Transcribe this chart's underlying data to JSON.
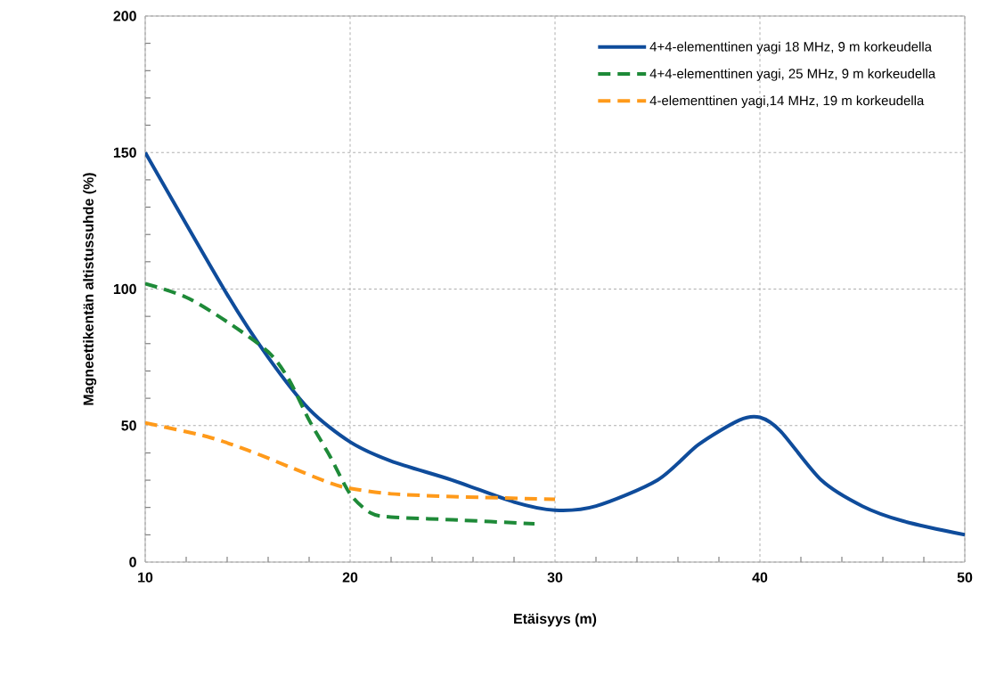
{
  "chart_data": {
    "type": "line",
    "xlabel": "Etäisyys (m)",
    "ylabel": "Magneettikentän altistussuhde (%)",
    "xlim": [
      10,
      50
    ],
    "xticks": [
      10,
      20,
      30,
      40,
      50
    ],
    "ylim": [
      0,
      200
    ],
    "yticks": [
      0,
      50,
      100,
      150,
      200
    ],
    "grid": true,
    "legend": "top right",
    "marker": "none",
    "series": [
      {
        "name": "4+4-elementtinen yagi 18 MHz, 9 m korkeudella",
        "color": "#0f4c9b",
        "line_style": "solid",
        "x": [
          10,
          14,
          16,
          18,
          20,
          22,
          25,
          28,
          30,
          32,
          35,
          37,
          39,
          40,
          41,
          43,
          45,
          47,
          50
        ],
        "values": [
          150,
          98,
          75,
          56,
          44,
          37,
          30,
          22,
          19,
          20.5,
          30,
          43,
          52,
          53,
          48,
          30,
          20.5,
          15,
          10
        ]
      },
      {
        "name": "4+4-elementtinen yagi, 25 MHz, 9 m korkeudella",
        "color": "#1e8a38",
        "line_style": "dashed",
        "x": [
          10,
          12,
          14,
          16,
          17,
          18,
          19,
          20,
          21,
          22,
          25,
          29
        ],
        "values": [
          102,
          97,
          88,
          77,
          67,
          52,
          39,
          25,
          18,
          16.5,
          15.5,
          14
        ]
      },
      {
        "name": "4-elementtinen yagi,14 MHz, 19 m korkeudella",
        "color": "#ff9a1a",
        "line_style": "dashed",
        "x": [
          10,
          13,
          15,
          17,
          19,
          20,
          22,
          25,
          30
        ],
        "values": [
          51,
          46,
          41,
          35,
          29,
          27,
          25,
          24,
          23
        ]
      }
    ]
  }
}
